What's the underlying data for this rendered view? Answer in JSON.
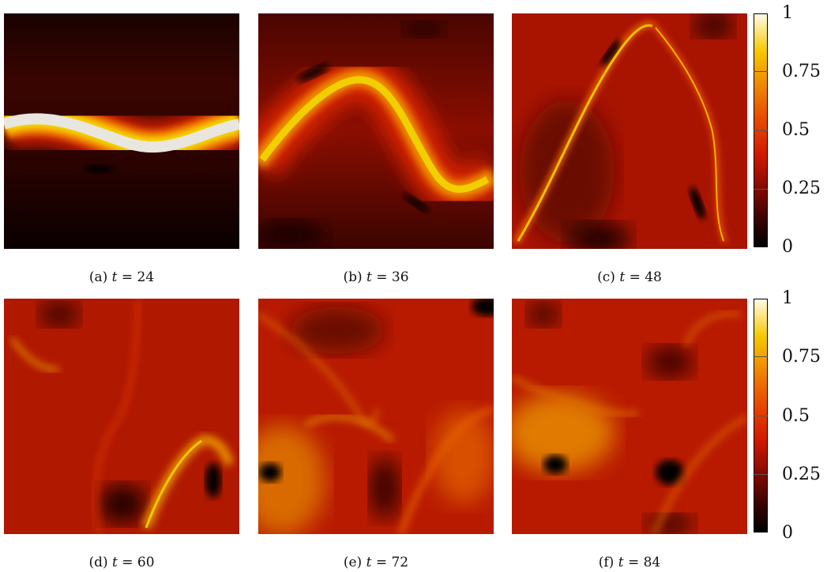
{
  "panels": [
    {
      "label": "(a)",
      "var": "t",
      "eq": " = 24"
    },
    {
      "label": "(b)",
      "var": "t",
      "eq": " = 36"
    },
    {
      "label": "(c)",
      "var": "t",
      "eq": " = 48"
    },
    {
      "label": "(d)",
      "var": "t",
      "eq": " = 60"
    },
    {
      "label": "(e)",
      "var": "t",
      "eq": " = 72"
    },
    {
      "label": "(f)",
      "var": "t",
      "eq": " = 84"
    }
  ],
  "colorbar": {
    "ticks": [
      "0",
      "0.25",
      "0.5",
      "0.75",
      "1"
    ],
    "colors": [
      "#000000",
      "#8a0a00",
      "#d21a00",
      "#f08a00",
      "#f6c800",
      "#fffbe8"
    ]
  }
}
